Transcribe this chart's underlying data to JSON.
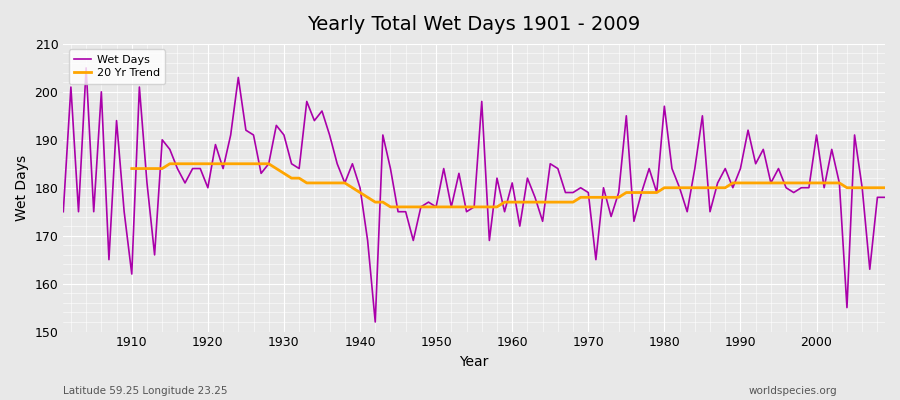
{
  "title": "Yearly Total Wet Days 1901 - 2009",
  "xlabel": "Year",
  "ylabel": "Wet Days",
  "xlim": [
    1901,
    2009
  ],
  "ylim": [
    150,
    210
  ],
  "yticks": [
    150,
    160,
    170,
    180,
    190,
    200,
    210
  ],
  "xticks": [
    1910,
    1920,
    1930,
    1940,
    1950,
    1960,
    1970,
    1980,
    1990,
    2000
  ],
  "wet_days_color": "#aa00aa",
  "trend_color": "#ffa500",
  "bg_color": "#e8e8e8",
  "plot_bg_color": "#e8e8e8",
  "legend_wet": "Wet Days",
  "legend_trend": "20 Yr Trend",
  "footer_left": "Latitude 59.25 Longitude 23.25",
  "footer_right": "worldspecies.org",
  "years": [
    1901,
    1902,
    1903,
    1904,
    1905,
    1906,
    1907,
    1908,
    1909,
    1910,
    1911,
    1912,
    1913,
    1914,
    1915,
    1916,
    1917,
    1918,
    1919,
    1920,
    1921,
    1922,
    1923,
    1924,
    1925,
    1926,
    1927,
    1928,
    1929,
    1930,
    1931,
    1932,
    1933,
    1934,
    1935,
    1936,
    1937,
    1938,
    1939,
    1940,
    1941,
    1942,
    1943,
    1944,
    1945,
    1946,
    1947,
    1948,
    1949,
    1950,
    1951,
    1952,
    1953,
    1954,
    1955,
    1956,
    1957,
    1958,
    1959,
    1960,
    1961,
    1962,
    1963,
    1964,
    1965,
    1966,
    1967,
    1968,
    1969,
    1970,
    1971,
    1972,
    1973,
    1974,
    1975,
    1976,
    1977,
    1978,
    1979,
    1980,
    1981,
    1982,
    1983,
    1984,
    1985,
    1986,
    1987,
    1988,
    1989,
    1990,
    1991,
    1992,
    1993,
    1994,
    1995,
    1996,
    1997,
    1998,
    1999,
    2000,
    2001,
    2002,
    2003,
    2004,
    2005,
    2006,
    2007,
    2008,
    2009
  ],
  "wet_days": [
    175,
    201,
    175,
    205,
    175,
    200,
    165,
    194,
    175,
    162,
    201,
    181,
    166,
    190,
    188,
    184,
    181,
    184,
    184,
    180,
    189,
    184,
    191,
    203,
    192,
    191,
    183,
    185,
    193,
    191,
    185,
    184,
    198,
    194,
    196,
    191,
    185,
    181,
    185,
    180,
    169,
    152,
    191,
    184,
    175,
    175,
    169,
    176,
    177,
    176,
    184,
    176,
    183,
    175,
    176,
    198,
    169,
    182,
    175,
    181,
    172,
    182,
    178,
    173,
    185,
    184,
    179,
    179,
    180,
    179,
    165,
    180,
    174,
    179,
    195,
    173,
    179,
    184,
    179,
    197,
    184,
    180,
    175,
    184,
    195,
    175,
    181,
    184,
    180,
    184,
    192,
    185,
    188,
    181,
    184,
    180,
    179,
    180,
    180,
    191,
    180,
    188,
    181,
    155,
    191,
    180,
    163,
    178,
    178
  ],
  "trend_years": [
    1910,
    1911,
    1912,
    1913,
    1914,
    1915,
    1916,
    1917,
    1918,
    1919,
    1920,
    1921,
    1922,
    1923,
    1924,
    1925,
    1926,
    1927,
    1928,
    1929,
    1930,
    1931,
    1932,
    1933,
    1934,
    1935,
    1936,
    1937,
    1938,
    1939,
    1940,
    1941,
    1942,
    1943,
    1944,
    1945,
    1946,
    1947,
    1948,
    1949,
    1950,
    1951,
    1952,
    1953,
    1954,
    1955,
    1956,
    1957,
    1958,
    1959,
    1960,
    1961,
    1962,
    1963,
    1964,
    1965,
    1966,
    1967,
    1968,
    1969,
    1970,
    1971,
    1972,
    1973,
    1974,
    1975,
    1976,
    1977,
    1978,
    1979,
    1980,
    1981,
    1982,
    1983,
    1984,
    1985,
    1986,
    1987,
    1988,
    1989,
    1990,
    1991,
    1992,
    1993,
    1994,
    1995,
    1996,
    1997,
    1998,
    1999,
    2000,
    2001,
    2002,
    2003,
    2004,
    2005,
    2006,
    2007,
    2008,
    2009
  ],
  "trend_values": [
    184,
    184,
    184,
    184,
    184,
    185,
    185,
    185,
    185,
    185,
    185,
    185,
    185,
    185,
    185,
    185,
    185,
    185,
    185,
    184,
    183,
    182,
    182,
    181,
    181,
    181,
    181,
    181,
    181,
    180,
    179,
    178,
    177,
    177,
    176,
    176,
    176,
    176,
    176,
    176,
    176,
    176,
    176,
    176,
    176,
    176,
    176,
    176,
    176,
    177,
    177,
    177,
    177,
    177,
    177,
    177,
    177,
    177,
    177,
    178,
    178,
    178,
    178,
    178,
    178,
    179,
    179,
    179,
    179,
    179,
    180,
    180,
    180,
    180,
    180,
    180,
    180,
    180,
    180,
    181,
    181,
    181,
    181,
    181,
    181,
    181,
    181,
    181,
    181,
    181,
    181,
    181,
    181,
    181,
    180,
    180,
    180,
    180,
    180,
    180
  ]
}
